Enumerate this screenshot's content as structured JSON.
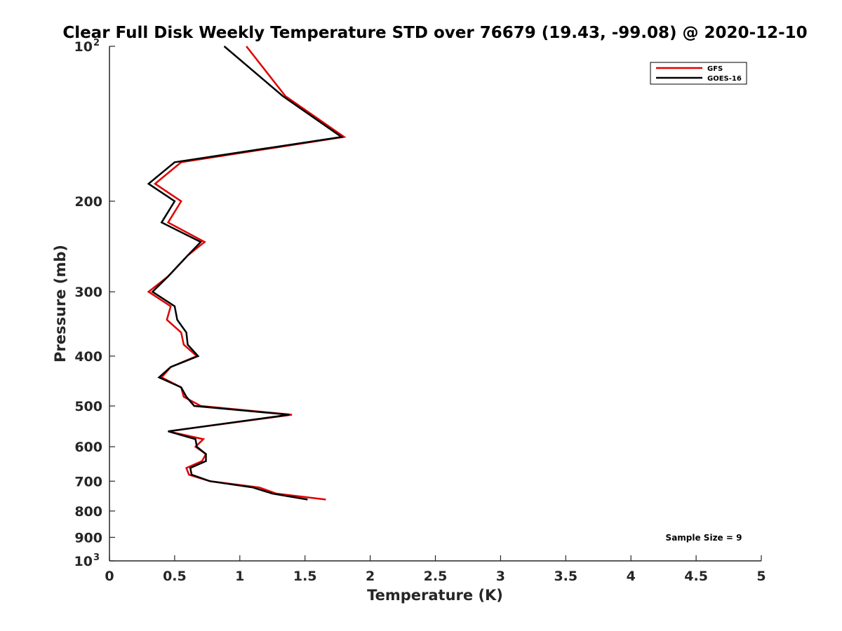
{
  "chart_data": {
    "type": "line",
    "title": "Clear Full Disk Weekly Temperature STD over 76679 (19.43, -99.08) @ 2020-12-10",
    "xlabel": "Temperature (K)",
    "ylabel": "Pressure (mb)",
    "xlim": [
      0,
      5
    ],
    "ylim": [
      100,
      1000
    ],
    "y_scale": "log",
    "y_reversed": true,
    "x_ticks": [
      {
        "v": 0,
        "label": "0"
      },
      {
        "v": 0.5,
        "label": "0.5"
      },
      {
        "v": 1,
        "label": "1"
      },
      {
        "v": 1.5,
        "label": "1.5"
      },
      {
        "v": 2,
        "label": "2"
      },
      {
        "v": 2.5,
        "label": "2.5"
      },
      {
        "v": 3,
        "label": "3"
      },
      {
        "v": 3.5,
        "label": "3.5"
      },
      {
        "v": 4,
        "label": "4"
      },
      {
        "v": 4.5,
        "label": "4.5"
      },
      {
        "v": 5,
        "label": "5"
      }
    ],
    "y_ticks": [
      {
        "v": 100,
        "label": "10",
        "sup": "2"
      },
      {
        "v": 200,
        "label": "200"
      },
      {
        "v": 300,
        "label": "300"
      },
      {
        "v": 400,
        "label": "400"
      },
      {
        "v": 500,
        "label": "500"
      },
      {
        "v": 600,
        "label": "600"
      },
      {
        "v": 700,
        "label": "700"
      },
      {
        "v": 800,
        "label": "800"
      },
      {
        "v": 900,
        "label": "900"
      },
      {
        "v": 1000,
        "label": "10",
        "sup": "3"
      }
    ],
    "grid": false,
    "legend_position": "top-right",
    "series": [
      {
        "name": "GFS",
        "color": "#e00000",
        "points": [
          [
            1.05,
            100
          ],
          [
            1.35,
            125
          ],
          [
            1.8,
            150
          ],
          [
            0.55,
            168
          ],
          [
            0.35,
            185
          ],
          [
            0.55,
            200
          ],
          [
            0.45,
            220
          ],
          [
            0.73,
            240
          ],
          [
            0.6,
            255
          ],
          [
            0.45,
            280
          ],
          [
            0.3,
            300
          ],
          [
            0.47,
            320
          ],
          [
            0.44,
            340
          ],
          [
            0.55,
            360
          ],
          [
            0.57,
            380
          ],
          [
            0.67,
            400
          ],
          [
            0.47,
            420
          ],
          [
            0.4,
            440
          ],
          [
            0.55,
            460
          ],
          [
            0.57,
            480
          ],
          [
            0.7,
            500
          ],
          [
            1.4,
            520
          ],
          [
            0.45,
            560
          ],
          [
            0.72,
            580
          ],
          [
            0.66,
            600
          ],
          [
            0.74,
            620
          ],
          [
            0.71,
            640
          ],
          [
            0.59,
            660
          ],
          [
            0.61,
            680
          ],
          [
            0.77,
            700
          ],
          [
            1.15,
            720
          ],
          [
            1.28,
            740
          ],
          [
            1.66,
            760
          ]
        ]
      },
      {
        "name": "GOES-16",
        "color": "#000000",
        "points": [
          [
            0.88,
            100
          ],
          [
            1.33,
            125
          ],
          [
            1.78,
            150
          ],
          [
            0.5,
            168
          ],
          [
            0.3,
            185
          ],
          [
            0.5,
            200
          ],
          [
            0.4,
            220
          ],
          [
            0.7,
            240
          ],
          [
            0.6,
            255
          ],
          [
            0.45,
            280
          ],
          [
            0.33,
            300
          ],
          [
            0.5,
            320
          ],
          [
            0.52,
            340
          ],
          [
            0.59,
            360
          ],
          [
            0.6,
            380
          ],
          [
            0.68,
            400
          ],
          [
            0.47,
            420
          ],
          [
            0.38,
            440
          ],
          [
            0.55,
            460
          ],
          [
            0.59,
            480
          ],
          [
            0.65,
            500
          ],
          [
            1.38,
            520
          ],
          [
            0.45,
            560
          ],
          [
            0.66,
            580
          ],
          [
            0.67,
            600
          ],
          [
            0.74,
            620
          ],
          [
            0.74,
            640
          ],
          [
            0.62,
            660
          ],
          [
            0.63,
            680
          ],
          [
            0.77,
            700
          ],
          [
            1.1,
            720
          ],
          [
            1.25,
            740
          ],
          [
            1.52,
            760
          ]
        ]
      }
    ],
    "annotations": [
      {
        "text": "Sample Size = 9"
      }
    ]
  }
}
